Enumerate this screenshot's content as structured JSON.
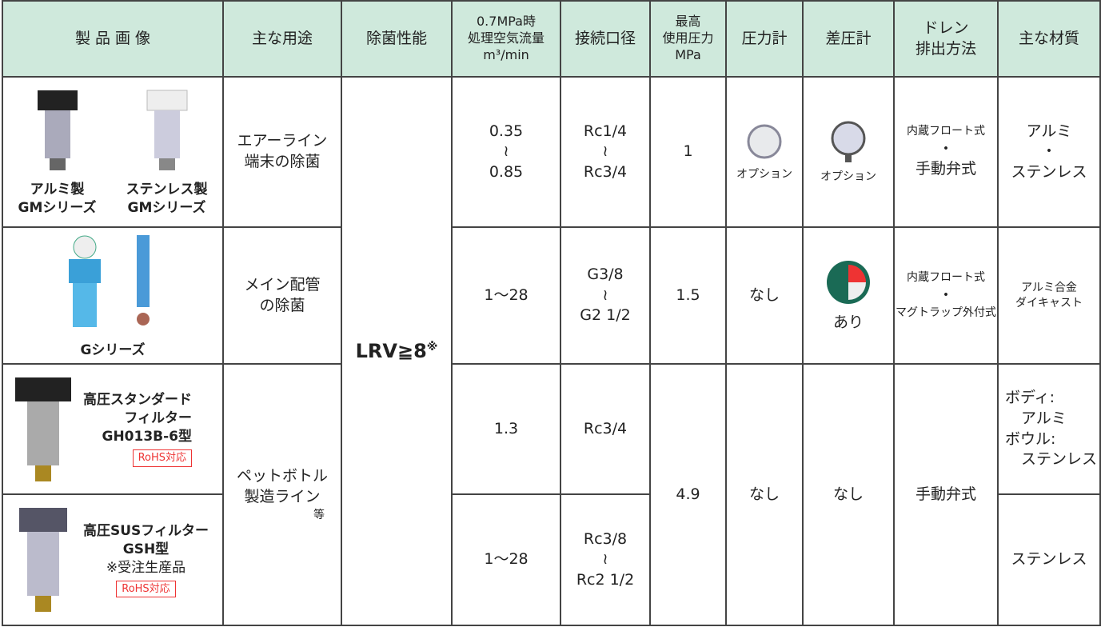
{
  "table": {
    "header": [
      "製 品 画 像",
      "主な用途",
      "除菌性能",
      [
        "0.7MPa時",
        "処理空気流量",
        "m³/min"
      ],
      "接続口径",
      [
        "最高",
        "使用圧力",
        "MPa"
      ],
      "圧力計",
      "差圧計",
      [
        "ドレン",
        "排出方法"
      ],
      "主な材質"
    ],
    "lrv": {
      "text": "LRV≧8",
      "note": "※"
    },
    "rows": [
      {
        "products": [
          [
            "アルミ製",
            "GMシリーズ"
          ],
          [
            "ステンレス製",
            "GMシリーズ"
          ]
        ],
        "use": [
          "エアーライン",
          "端末の除菌"
        ],
        "flow": [
          "0.35",
          "≀",
          "0.85"
        ],
        "port": [
          "Rc1/4",
          "≀",
          "Rc3/4"
        ],
        "pressure": "1",
        "gauge": "オプション",
        "diff_gauge": "オプション",
        "drain": [
          "内蔵フロート式",
          "・",
          "手動弁式"
        ],
        "material": [
          "アルミ",
          "・",
          "ステンレス"
        ]
      },
      {
        "products": [
          "Gシリーズ"
        ],
        "use": [
          "メイン配管",
          "の除菌"
        ],
        "flow": "1～28",
        "port": [
          "G3/8",
          "≀",
          "G2 1/2"
        ],
        "pressure": "1.5",
        "gauge": "なし",
        "diff_gauge": "あり",
        "drain": [
          "内蔵フロート式",
          "・",
          "マグトラップ外付式"
        ],
        "material": [
          "アルミ合金",
          "ダイキャスト"
        ]
      },
      {
        "products": [
          "高圧スタンダード",
          "フィルター",
          "GH013B-6型"
        ],
        "badge": "RoHS対応",
        "use": [
          "ペットボトル",
          "製造ライン",
          "等"
        ],
        "flow": "1.3",
        "port": "Rc3/4",
        "pressure": "4.9",
        "gauge": "なし",
        "diff_gauge": "なし",
        "drain": "手動弁式",
        "material": [
          "ボディ:",
          "アルミ",
          "ボウル:",
          "ステンレス"
        ]
      },
      {
        "products": [
          "高圧SUSフィルター",
          "GSH型",
          "※受注生産品"
        ],
        "badge": "RoHS対応",
        "flow": "1～28",
        "port": [
          "Rc3/8",
          "≀",
          "Rc2 1/2"
        ],
        "material": "ステンレス"
      }
    ]
  }
}
